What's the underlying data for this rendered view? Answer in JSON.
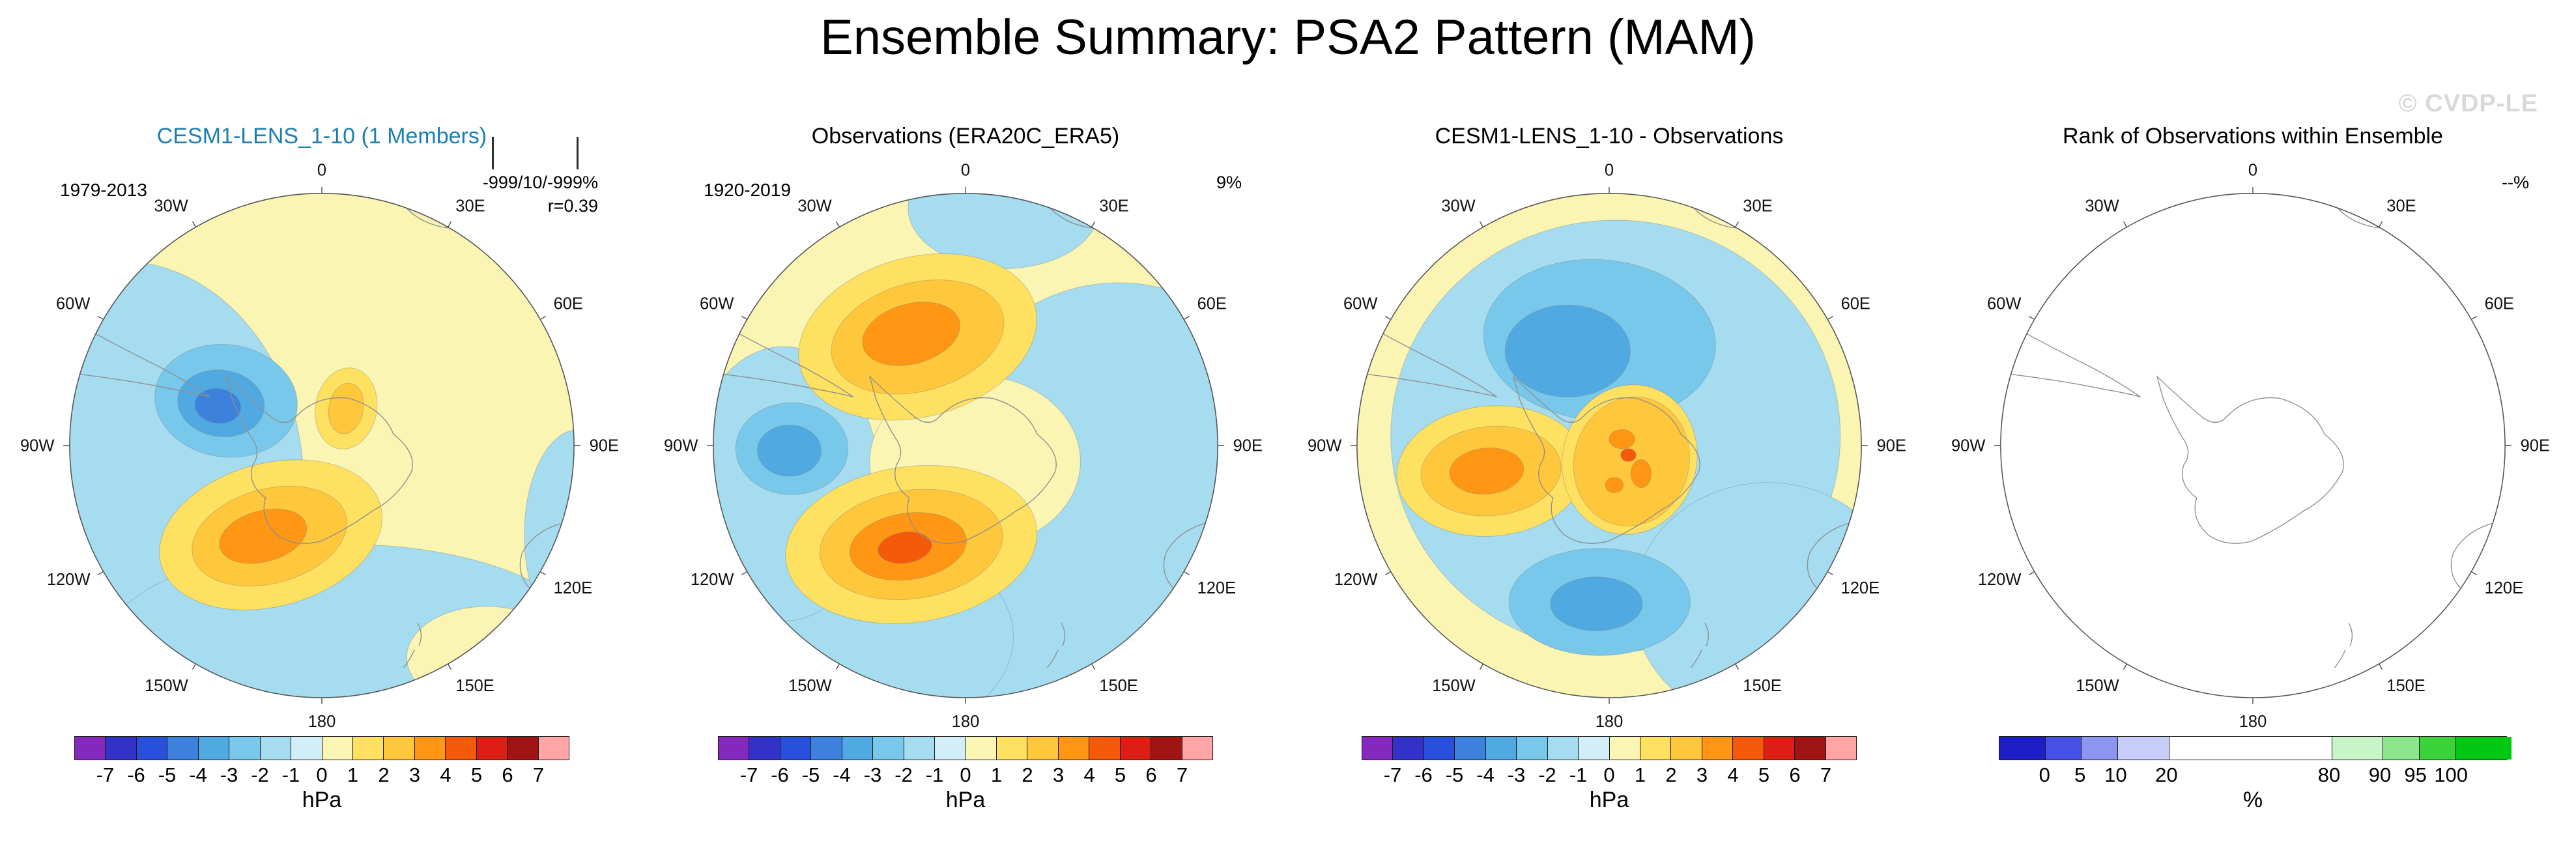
{
  "title": "Ensemble Summary: PSA2 Pattern (MAM)",
  "watermark": "© CVDP-LE",
  "lon_labels": [
    "0",
    "30W",
    "60W",
    "90W",
    "120W",
    "150W",
    "180",
    "150E",
    "120E",
    "90E",
    "60E",
    "30E"
  ],
  "panels": [
    {
      "title": "CESM1-LENS_1-10 (1 Members)",
      "title_color": "#1C7FB0",
      "period": "1979-2013",
      "right1": "-999/10/-999%",
      "right2": "r=0.39",
      "has_bars": true,
      "colorbar": "hpa"
    },
    {
      "title": "Observations (ERA20C_ERA5)",
      "title_color": "#000000",
      "period": "1920-2019",
      "right1": "9%",
      "colorbar": "hpa"
    },
    {
      "title": "CESM1-LENS_1-10 - Observations",
      "title_color": "#000000",
      "colorbar": "hpa"
    },
    {
      "title": "Rank of Observations within Ensemble",
      "title_color": "#000000",
      "right1": "--%",
      "colorbar": "rank"
    }
  ],
  "colorbars": {
    "hpa": {
      "unit": "hPa",
      "ticks": [
        "-7",
        "-6",
        "-5",
        "-4",
        "-3",
        "-2",
        "-1",
        "0",
        "1",
        "2",
        "3",
        "4",
        "5",
        "6",
        "7"
      ],
      "colors": [
        "#8428BE",
        "#3232C8",
        "#2850DC",
        "#3C82DC",
        "#50AAE1",
        "#78C8EB",
        "#A5DCF0",
        "#D2EEF8",
        "#FBF5B4",
        "#FFE161",
        "#FFC83C",
        "#FF9614",
        "#F55A0A",
        "#DC1E14",
        "#A01414",
        "#FFA5A5"
      ]
    },
    "rank": {
      "unit": "%",
      "ticks": [
        "0",
        "5",
        "10",
        "20",
        "80",
        "90",
        "95",
        "100"
      ],
      "tick_pos": [
        9,
        16,
        23,
        33,
        65,
        75,
        82,
        89
      ],
      "widths": [
        9,
        7,
        7,
        10,
        32,
        10,
        7,
        7,
        11
      ],
      "colors": [
        "#1E1EC8",
        "#4650E6",
        "#8C96F0",
        "#C8CDFA",
        "#FFFFFF",
        "#C8F5C8",
        "#8CE68C",
        "#3CD23C",
        "#00C814"
      ]
    }
  },
  "chart_data": [
    {
      "type": "heatmap",
      "subtype": "south-polar-stereographic-contour-map",
      "title": "CESM1-LENS_1-10 (1 Members)",
      "period": "1979-2013",
      "annotations": [
        "-999/10/-999%",
        "r=0.39"
      ],
      "units": "hPa",
      "levels": [
        -7,
        -6,
        -5,
        -4,
        -3,
        -2,
        -1,
        0,
        1,
        2,
        3,
        4,
        5,
        6,
        7
      ],
      "features": [
        {
          "desc": "negative anomaly center west of Antarctic Peninsula (~90W-120W)",
          "approx_hPa": -4
        },
        {
          "desc": "positive anomaly center over Amundsen/Ross sector (~130W-160W)",
          "approx_hPa": 3
        },
        {
          "desc": "small positive cell just east of the Peninsula",
          "approx_hPa": 2
        },
        {
          "desc": "broad weak field: 0 to 1 over Atlantic/Indian sectors, -1 to 0 over Pacific mid-latitudes",
          "approx_hPa": 0
        }
      ]
    },
    {
      "type": "heatmap",
      "subtype": "south-polar-stereographic-contour-map",
      "title": "Observations (ERA20C_ERA5)",
      "period": "1920-2019",
      "annotations": [
        "9%"
      ],
      "units": "hPa",
      "levels": [
        -7,
        -6,
        -5,
        -4,
        -3,
        -2,
        -1,
        0,
        1,
        2,
        3,
        4,
        5,
        6,
        7
      ],
      "features": [
        {
          "desc": "positive anomaly center in South Atlantic sector (~30W-60W)",
          "approx_hPa": 3
        },
        {
          "desc": "negative anomaly center in southeast Pacific (~90W)",
          "approx_hPa": -2
        },
        {
          "desc": "strong positive anomaly center in Ross/Amundsen sector (~120W-160W)",
          "approx_hPa": 5
        },
        {
          "desc": "broad -1 to 0 over Indian Ocean and Pacific mid-latitudes, 0 to 1 near pole and Atlantic",
          "approx_hPa": 0
        }
      ]
    },
    {
      "type": "heatmap",
      "subtype": "south-polar-stereographic-contour-map",
      "title": "CESM1-LENS_1-10 - Observations",
      "units": "hPa",
      "levels": [
        -7,
        -6,
        -5,
        -4,
        -3,
        -2,
        -1,
        0,
        1,
        2,
        3,
        4,
        5,
        6,
        7
      ],
      "features": [
        {
          "desc": "negative difference center over Weddell/Atlantic sector (~0-60W)",
          "approx_hPa": -4
        },
        {
          "desc": "positive difference center near 90W-120W",
          "approx_hPa": 3
        },
        {
          "desc": "mottled positive difference over Antarctic interior",
          "approx_hPa": 4
        },
        {
          "desc": "negative difference center over Ross Sea sector (~180)",
          "approx_hPa": -2
        },
        {
          "desc": "weak positive ring (0 to 1) along the map edge, -1 to 0 elsewhere",
          "approx_hPa": 0
        }
      ]
    },
    {
      "type": "heatmap",
      "subtype": "south-polar-stereographic-rank-map",
      "title": "Rank of Observations within Ensemble",
      "annotations": [
        "--%"
      ],
      "units": "%",
      "levels": [
        0,
        5,
        10,
        20,
        80,
        90,
        95,
        100
      ],
      "features": [
        {
          "desc": "blank (white) map - rank not shown for a single ensemble member"
        }
      ]
    }
  ]
}
